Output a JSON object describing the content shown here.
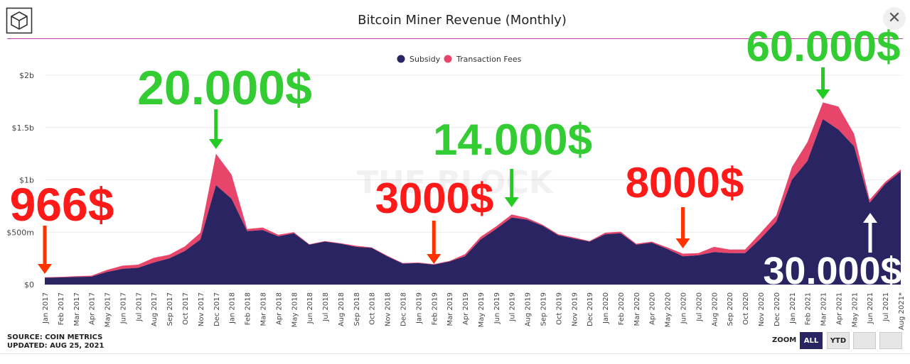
{
  "header": {
    "title": "Bitcoin Miner Revenue (Monthly)",
    "close_label": "✕"
  },
  "chart_data": {
    "type": "area",
    "stacked": true,
    "title": "Bitcoin Miner Revenue (Monthly)",
    "watermark": "THE BLOCK",
    "categories": [
      "Jan 2017",
      "Feb 2017",
      "Mar 2017",
      "Apr 2017",
      "May 2017",
      "Jun 2017",
      "Jul 2017",
      "Aug 2017",
      "Sep 2017",
      "Oct 2017",
      "Nov 2017",
      "Dec 2017",
      "Jan 2018",
      "Feb 2018",
      "Mar 2018",
      "Apr 2018",
      "May 2018",
      "Jun 2018",
      "Jul 2018",
      "Aug 2018",
      "Sep 2018",
      "Oct 2018",
      "Nov 2018",
      "Dec 2018",
      "Jan 2019",
      "Feb 2019",
      "Mar 2019",
      "Apr 2019",
      "May 2019",
      "Jun 2019",
      "Jul 2019",
      "Aug 2019",
      "Sep 2019",
      "Oct 2019",
      "Nov 2019",
      "Dec 2019",
      "Jan 2020",
      "Feb 2020",
      "Mar 2020",
      "Apr 2020",
      "May 2020",
      "Jun 2020",
      "Jul 2020",
      "Aug 2020",
      "Sep 2020",
      "Oct 2020",
      "Nov 2020",
      "Dec 2020",
      "Jan 2021",
      "Feb 2021",
      "Mar 2021",
      "Apr 2021",
      "May 2021",
      "Jun 2021",
      "Jul 2021",
      "Aug 2021*"
    ],
    "series": [
      {
        "name": "Subsidy",
        "color": "#2a2463",
        "values": [
          65,
          68,
          72,
          75,
          120,
          150,
          160,
          210,
          250,
          320,
          430,
          950,
          820,
          510,
          520,
          460,
          490,
          380,
          410,
          390,
          360,
          350,
          270,
          200,
          205,
          190,
          220,
          270,
          430,
          530,
          640,
          620,
          560,
          470,
          440,
          410,
          480,
          490,
          380,
          400,
          340,
          270,
          280,
          310,
          300,
          300,
          440,
          600,
          1000,
          1180,
          1580,
          1480,
          1320,
          780,
          960,
          1080
        ]
      },
      {
        "name": "Transaction Fees",
        "color": "#e8456b",
        "values": [
          5,
          5,
          8,
          10,
          20,
          30,
          30,
          45,
          35,
          45,
          65,
          300,
          230,
          20,
          25,
          15,
          10,
          5,
          5,
          5,
          10,
          5,
          5,
          5,
          5,
          5,
          5,
          20,
          25,
          25,
          30,
          15,
          10,
          10,
          10,
          5,
          15,
          15,
          10,
          10,
          15,
          25,
          20,
          50,
          35,
          35,
          55,
          60,
          120,
          180,
          160,
          220,
          120,
          30,
          20,
          20
        ]
      }
    ],
    "ylim": [
      0,
      2000
    ],
    "yunit": "millions USD",
    "y_ticks": [
      {
        "value": 0,
        "label": "$0"
      },
      {
        "value": 500,
        "label": "$500m"
      },
      {
        "value": 1000,
        "label": "$1b"
      },
      {
        "value": 1500,
        "label": "$1.5b"
      },
      {
        "value": 2000,
        "label": "$2b"
      }
    ],
    "grid": true,
    "legend_position": "top-center",
    "annotations": [
      {
        "text": "966$",
        "color": "#ff1a1a",
        "category": "Jan 2017",
        "arrow": "down",
        "arrow_color": "#ff3300"
      },
      {
        "text": "20.000$",
        "color": "#33cc33",
        "category": "Dec 2017",
        "arrow": "down",
        "arrow_color": "#22cc22"
      },
      {
        "text": "3000$",
        "color": "#ff1a1a",
        "category": "Feb 2019",
        "arrow": "down",
        "arrow_color": "#ff3300"
      },
      {
        "text": "14.000$",
        "color": "#33cc33",
        "category": "Jul 2019",
        "arrow": "down",
        "arrow_color": "#22cc22"
      },
      {
        "text": "8000$",
        "color": "#ff1a1a",
        "category": "Jun 2020",
        "arrow": "down",
        "arrow_color": "#ff3300"
      },
      {
        "text": "60.000$",
        "color": "#33cc33",
        "category": "Mar 2021",
        "arrow": "down",
        "arrow_color": "#22cc22"
      },
      {
        "text": "30.000$",
        "color": "#ffffff",
        "category": "Jun 2021",
        "arrow": "up",
        "arrow_color": "#ffffff"
      }
    ]
  },
  "footer": {
    "source": "SOURCE: COIN METRICS",
    "updated": "UPDATED: AUG 25, 2021",
    "zoom_label": "ZOOM",
    "zoom_all": "ALL",
    "zoom_ytd": "YTD"
  }
}
